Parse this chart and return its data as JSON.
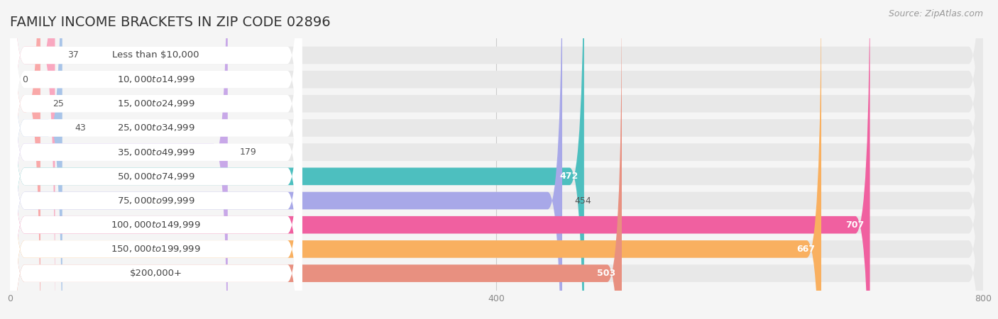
{
  "title": "FAMILY INCOME BRACKETS IN ZIP CODE 02896",
  "source": "Source: ZipAtlas.com",
  "categories": [
    "Less than $10,000",
    "$10,000 to $14,999",
    "$15,000 to $24,999",
    "$25,000 to $34,999",
    "$35,000 to $49,999",
    "$50,000 to $74,999",
    "$75,000 to $99,999",
    "$100,000 to $149,999",
    "$150,000 to $199,999",
    "$200,000+"
  ],
  "values": [
    37,
    0,
    25,
    43,
    179,
    472,
    454,
    707,
    667,
    503
  ],
  "bar_colors": [
    "#F9A8C0",
    "#F9C897",
    "#F9A8A8",
    "#A8C4E8",
    "#C8A8E8",
    "#4DBFBF",
    "#A8A8E8",
    "#F060A0",
    "#F9B060",
    "#E89080"
  ],
  "background_color": "#f5f5f5",
  "bar_bg_color": "#e8e8e8",
  "white_label_color": "#ffffff",
  "xlim": [
    0,
    800
  ],
  "xticks": [
    0,
    400,
    800
  ],
  "title_fontsize": 14,
  "label_fontsize": 9.5,
  "value_fontsize": 9,
  "source_fontsize": 9
}
